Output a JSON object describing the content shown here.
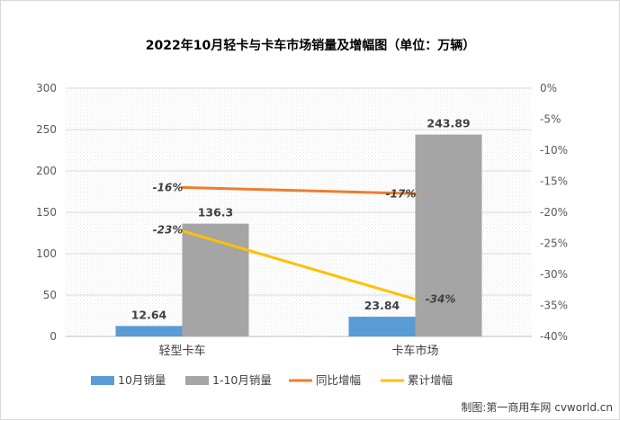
{
  "chart_data": {
    "type": "bar",
    "title": "2022年10月轻卡与卡车市场销量及增幅图（单位：万辆）",
    "categories": [
      "轻型卡车",
      "卡车市场"
    ],
    "series": [
      {
        "name": "10月销量",
        "type": "bar",
        "axis": "left",
        "color": "#5b9bd5",
        "values": [
          12.64,
          23.84
        ],
        "labels": [
          "12.64",
          "23.84"
        ]
      },
      {
        "name": "1-10月销量",
        "type": "bar",
        "axis": "left",
        "color": "#a5a5a5",
        "values": [
          136.3,
          243.89
        ],
        "labels": [
          "136.3",
          "243.89"
        ]
      },
      {
        "name": "同比增幅",
        "type": "line",
        "axis": "right",
        "color": "#ed7d31",
        "values": [
          -16,
          -17
        ],
        "labels": [
          "-16%",
          "-17%"
        ]
      },
      {
        "name": "累计增幅",
        "type": "line",
        "axis": "right",
        "color": "#ffc000",
        "values": [
          -23,
          -34
        ],
        "labels": [
          "-23%",
          "-34%"
        ]
      }
    ],
    "y_left": {
      "min": 0,
      "max": 300,
      "ticks": [
        "0",
        "50",
        "100",
        "150",
        "200",
        "250",
        "300"
      ]
    },
    "y_right": {
      "min": -40,
      "max": 0,
      "ticks": [
        "0%",
        "-5%",
        "-10%",
        "-15%",
        "-20%",
        "-25%",
        "-30%",
        "-35%",
        "-40%"
      ]
    },
    "grid": true,
    "legend_position": "bottom"
  },
  "credit": "制图:第一商用车网 cvworld.cn"
}
